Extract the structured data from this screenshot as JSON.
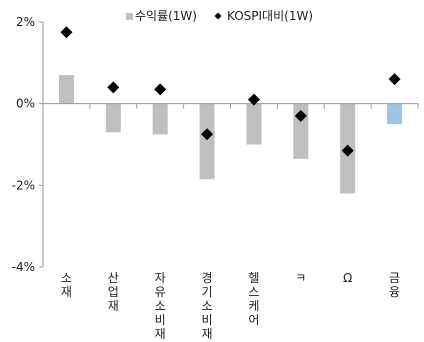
{
  "chart_data": {
    "type": "bar",
    "legend": {
      "position": "top-right",
      "items": [
        {
          "label": "수익률(1W)",
          "marker": "square",
          "color": "#BFBFBF"
        },
        {
          "label": "KOSPI대비(1W)",
          "marker": "diamond",
          "color": "#000000"
        }
      ]
    },
    "categories": [
      "소재",
      "산업재",
      "자유소비재",
      "경기소비재",
      "헬스케어",
      "ㅋ",
      "Ω",
      "금융"
    ],
    "series": [
      {
        "name": "수익률(1W)",
        "type": "bar",
        "color": "#BFBFBF",
        "highlight_color": "#9DC3E6",
        "highlight_index": 7,
        "values": [
          0.7,
          -0.7,
          -0.75,
          -1.85,
          -1.0,
          -1.35,
          -2.2,
          -0.5
        ]
      },
      {
        "name": "KOSPI대비(1W)",
        "type": "scatter",
        "marker": "diamond",
        "color": "#000000",
        "values": [
          1.75,
          0.4,
          0.35,
          -0.75,
          0.1,
          -0.3,
          -1.15,
          0.6
        ]
      }
    ],
    "y_ticks": [
      2,
      0,
      -2,
      -4
    ],
    "y_tick_labels": [
      "2%",
      "0%",
      "-2%",
      "-4%"
    ],
    "ylim": [
      -4,
      2
    ],
    "grid": false,
    "xlabel": "",
    "ylabel": ""
  }
}
